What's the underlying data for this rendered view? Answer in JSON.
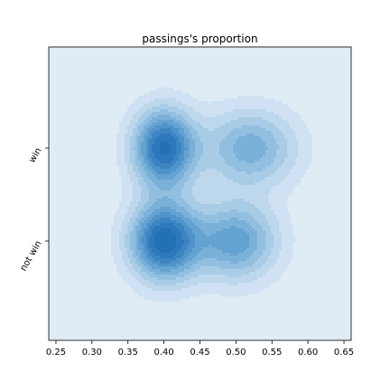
{
  "chart_data": {
    "type": "kde-contour",
    "title": "passings's proportion",
    "xlabel": "",
    "ylabel": "",
    "xlim": [
      0.24,
      0.66
    ],
    "x_ticks": [
      0.25,
      0.3,
      0.35,
      0.4,
      0.45,
      0.5,
      0.55,
      0.6,
      0.65
    ],
    "x_tick_labels": [
      "0.25",
      "0.30",
      "0.35",
      "0.40",
      "0.45",
      "0.50",
      "0.55",
      "0.60",
      "0.65"
    ],
    "categories": [
      "not win",
      "win"
    ],
    "grid": false,
    "legend": "none",
    "colormap": "Blues",
    "filled_levels": 10,
    "components": [
      {
        "category": "win",
        "x_center": 0.4,
        "x_spread": 0.03,
        "weight": 1.0
      },
      {
        "category": "win",
        "x_center": 0.52,
        "x_spread": 0.045,
        "weight": 0.55
      },
      {
        "category": "not win",
        "x_center": 0.4,
        "x_spread": 0.033,
        "weight": 1.05
      },
      {
        "category": "not win",
        "x_center": 0.5,
        "x_spread": 0.04,
        "weight": 0.65
      }
    ],
    "colors": {
      "axes_background": "#dfebf5",
      "palette": [
        "#dfebf5",
        "#cfe1f2",
        "#bdd7ec",
        "#a8cce6",
        "#92bfe0",
        "#7ab1d9",
        "#64a2d1",
        "#4f93ca",
        "#3c85c2",
        "#2d78bb",
        "#2370b5"
      ]
    }
  }
}
